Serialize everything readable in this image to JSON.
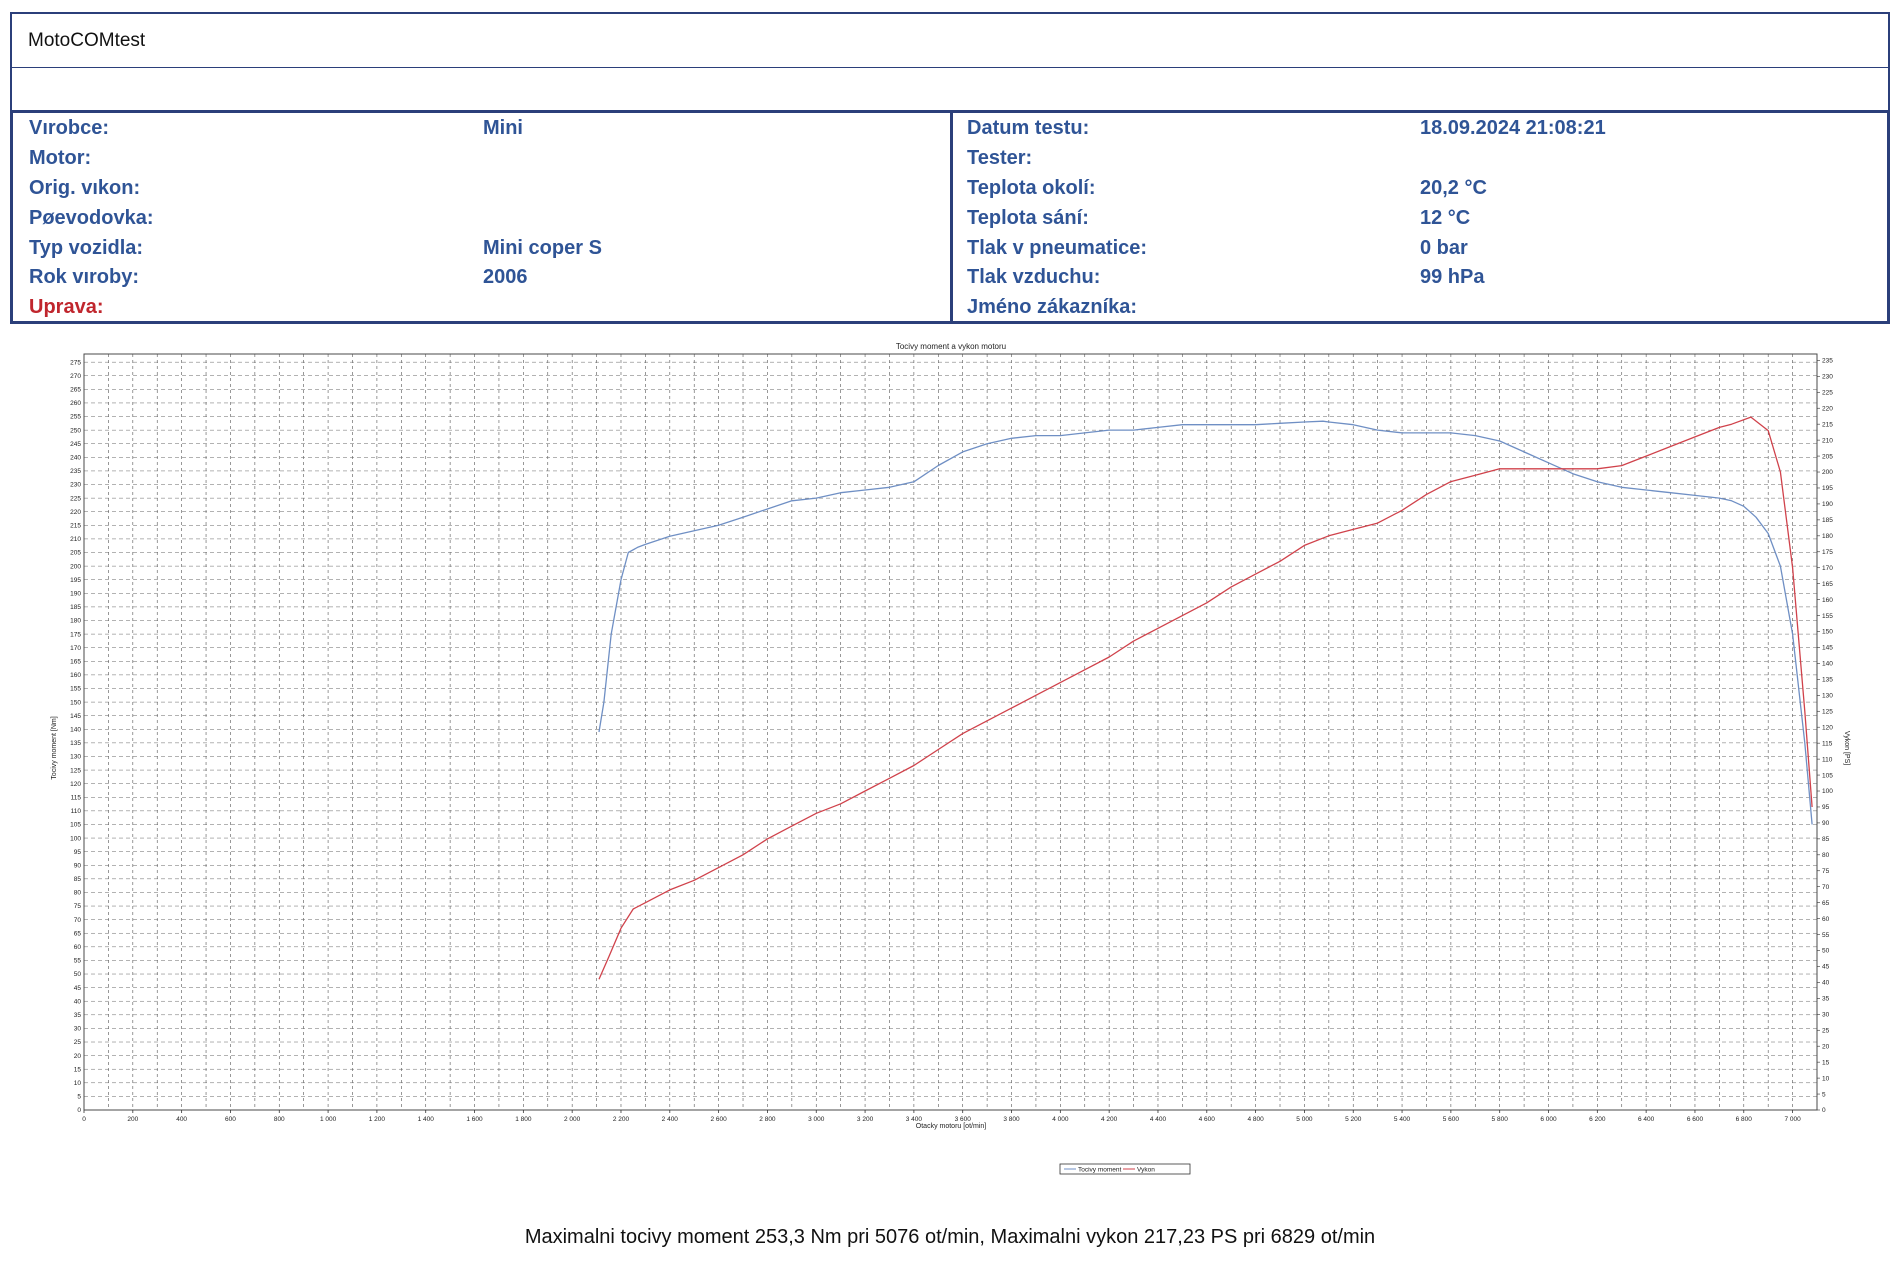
{
  "header": {
    "title": "MotoCOMtest"
  },
  "info_left": [
    {
      "label": "Vırobce:",
      "value": "Mini"
    },
    {
      "label": "Motor:",
      "value": ""
    },
    {
      "label": "Orig. vıkon:",
      "value": ""
    },
    {
      "label": "Pøevodovka:",
      "value": ""
    },
    {
      "label": "Typ vozidla:",
      "value": "Mini coper S"
    },
    {
      "label": "Rok vıroby:",
      "value": "2006"
    },
    {
      "label": "Uprava:",
      "value": ""
    }
  ],
  "info_right": [
    {
      "label": "Datum testu:",
      "value": "18.09.2024 21:08:21"
    },
    {
      "label": "Tester:",
      "value": ""
    },
    {
      "label": "Teplota okolí:",
      "value": "20,2 °C"
    },
    {
      "label": "Teplota sání:",
      "value": "12 °C"
    },
    {
      "label": "Tlak v pneumatice:",
      "value": "0 bar"
    },
    {
      "label": "Tlak vzduchu:",
      "value": "99 hPa"
    },
    {
      "label": "Jméno zákazníka:",
      "value": ""
    }
  ],
  "colors": {
    "header_text": "#2f5496",
    "uprava_text": "#c0262d",
    "torque": "#6f8fc4",
    "power": "#d0424b",
    "frame": "#2b3f7a"
  },
  "chart_data": {
    "type": "line",
    "title": "Tocivy moment a vykon motoru",
    "xlabel": "Otacky motoru [ot/min]",
    "ylabel": "Tocivy moment [Nm]",
    "y2label": "Vykon [PS]",
    "xlim": [
      0,
      7100
    ],
    "ylim": [
      0,
      278
    ],
    "y2lim": [
      0,
      237
    ],
    "x_ticks": [
      0,
      200,
      400,
      600,
      800,
      1000,
      1200,
      1400,
      1600,
      1800,
      2000,
      2200,
      2400,
      2600,
      2800,
      3000,
      3200,
      3400,
      3600,
      3800,
      4000,
      4200,
      4400,
      4600,
      4800,
      5000,
      5200,
      5400,
      5600,
      5800,
      6000,
      6200,
      6400,
      6600,
      6800,
      7000
    ],
    "x_tick_labels": [
      "0",
      "200",
      "400",
      "600",
      "800",
      "1 000",
      "1 200",
      "1 400",
      "1 600",
      "1 800",
      "2 000",
      "2 200",
      "2 400",
      "2 600",
      "2 800",
      "3 000",
      "3 200",
      "3 400",
      "3 600",
      "3 800",
      "4 000",
      "4 200",
      "4 400",
      "4 600",
      "4 800",
      "5 000",
      "5 200",
      "5 400",
      "5 600",
      "5 800",
      "6 000",
      "6 200",
      "6 400",
      "6 600",
      "6 800",
      "7 000"
    ],
    "y_tick_step": 5,
    "y2_tick_step": 5,
    "grid": true,
    "legend_position": "bottom-center",
    "series": [
      {
        "name": "Tocivy moment",
        "axis": "left",
        "x": [
          2110,
          2130,
          2160,
          2200,
          2230,
          2270,
          2300,
          2400,
          2500,
          2600,
          2700,
          2800,
          2900,
          3000,
          3100,
          3200,
          3300,
          3400,
          3500,
          3600,
          3700,
          3800,
          3900,
          4000,
          4100,
          4200,
          4300,
          4400,
          4500,
          4600,
          4700,
          4800,
          4900,
          5000,
          5076,
          5100,
          5200,
          5300,
          5400,
          5500,
          5600,
          5700,
          5800,
          5900,
          6000,
          6100,
          6200,
          6300,
          6400,
          6500,
          6600,
          6700,
          6750,
          6800,
          6850,
          6900,
          6950,
          7000,
          7050,
          7080
        ],
        "y": [
          139,
          150,
          175,
          195,
          205,
          207,
          208,
          211,
          213,
          215,
          218,
          221,
          224,
          225,
          227,
          228,
          229,
          231,
          237,
          242,
          245,
          247,
          248,
          248,
          249,
          250,
          250,
          251,
          252,
          252,
          252,
          252,
          252.5,
          253,
          253.3,
          253,
          252,
          250,
          249,
          249,
          249,
          248,
          246,
          242,
          238,
          234,
          231,
          229,
          228,
          227,
          226,
          225,
          224,
          222,
          218,
          212,
          200,
          175,
          135,
          105
        ]
      },
      {
        "name": "Vykon",
        "axis": "right",
        "x": [
          2110,
          2150,
          2200,
          2250,
          2300,
          2400,
          2500,
          2600,
          2700,
          2800,
          2900,
          3000,
          3100,
          3200,
          3300,
          3400,
          3500,
          3600,
          3700,
          3800,
          3900,
          4000,
          4100,
          4200,
          4300,
          4400,
          4500,
          4600,
          4700,
          4800,
          4900,
          5000,
          5100,
          5200,
          5300,
          5400,
          5500,
          5600,
          5700,
          5800,
          5900,
          6000,
          6100,
          6200,
          6300,
          6400,
          6500,
          6600,
          6700,
          6750,
          6829,
          6900,
          6950,
          7000,
          7050,
          7080
        ],
        "y": [
          41,
          48,
          57,
          63,
          65,
          69,
          72,
          76,
          80,
          85,
          89,
          93,
          96,
          100,
          104,
          108,
          113,
          118,
          122,
          126,
          130,
          134,
          138,
          142,
          147,
          151,
          155,
          159,
          164,
          168,
          172,
          177,
          180,
          182,
          184,
          188,
          193,
          197,
          199,
          201,
          201,
          201,
          201,
          201,
          202,
          205,
          208,
          211,
          214,
          215,
          217.23,
          213,
          200,
          170,
          125,
          95
        ]
      }
    ],
    "footer": "Maximalni tocivy moment 253,3 Nm pri 5076 ot/min,  Maximalni vykon 217,23 PS pri 6829 ot/min"
  }
}
